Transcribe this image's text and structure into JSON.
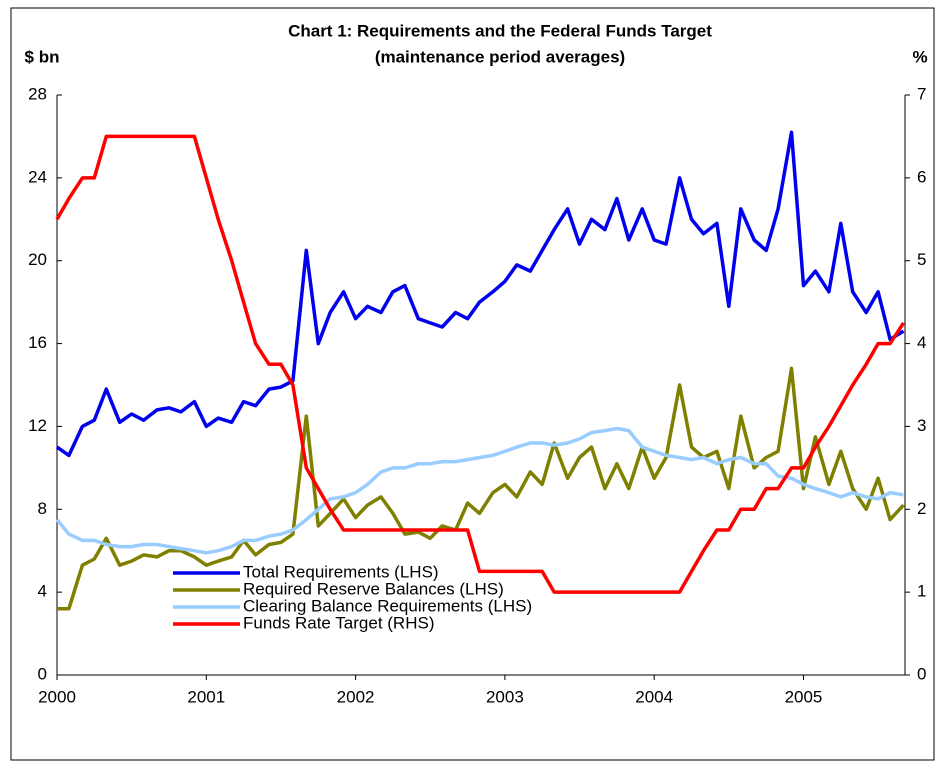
{
  "chart_data": {
    "type": "line",
    "title": "Chart 1:  Requirements and the Federal Funds Target",
    "subtitle": "(maintenance period averages)",
    "y_label": "$ bn",
    "y2_label": "%",
    "x": [
      2000,
      2000.08,
      2000.17,
      2000.25,
      2000.33,
      2000.42,
      2000.5,
      2000.58,
      2000.67,
      2000.75,
      2000.83,
      2000.92,
      2001,
      2001.08,
      2001.17,
      2001.25,
      2001.33,
      2001.42,
      2001.5,
      2001.58,
      2001.67,
      2001.75,
      2001.83,
      2001.92,
      2002,
      2002.08,
      2002.17,
      2002.25,
      2002.33,
      2002.42,
      2002.5,
      2002.58,
      2002.67,
      2002.75,
      2002.83,
      2002.92,
      2003,
      2003.08,
      2003.17,
      2003.25,
      2003.33,
      2003.42,
      2003.5,
      2003.58,
      2003.67,
      2003.75,
      2003.83,
      2003.92,
      2004,
      2004.08,
      2004.17,
      2004.25,
      2004.33,
      2004.42,
      2004.5,
      2004.58,
      2004.67,
      2004.75,
      2004.83,
      2004.92,
      2005,
      2005.08,
      2005.17,
      2005.25,
      2005.33,
      2005.42,
      2005.5,
      2005.58,
      2005.67
    ],
    "xlim": [
      2000,
      2005.68
    ],
    "xticks": [
      2000,
      2001,
      2002,
      2003,
      2004,
      2005
    ],
    "ylim": [
      0,
      28
    ],
    "yticks": [
      0,
      4,
      8,
      12,
      16,
      20,
      24,
      28
    ],
    "y2lim": [
      0,
      7
    ],
    "y2ticks": [
      0,
      1,
      2,
      3,
      4,
      5,
      6,
      7
    ],
    "grid": false,
    "series": [
      {
        "name": "Total Requirements (LHS)",
        "color": "#0000ee",
        "values": [
          11.0,
          10.6,
          12.0,
          12.3,
          13.8,
          12.2,
          12.6,
          12.3,
          12.8,
          12.9,
          12.7,
          13.2,
          12.0,
          12.4,
          12.2,
          13.2,
          13.0,
          13.8,
          13.9,
          14.2,
          20.5,
          16.0,
          17.5,
          18.5,
          17.2,
          17.8,
          17.5,
          18.5,
          18.8,
          17.2,
          17.0,
          16.8,
          17.5,
          17.2,
          18.0,
          18.5,
          19.0,
          19.8,
          19.5,
          20.5,
          21.5,
          22.5,
          20.8,
          22.0,
          21.5,
          23.0,
          21.0,
          22.5,
          21.0,
          20.8,
          24.0,
          22.0,
          21.3,
          21.8,
          17.8,
          22.5,
          21.0,
          20.5,
          22.5,
          26.2,
          18.8,
          19.5,
          18.5,
          21.8,
          18.5,
          17.5,
          18.5,
          16.2,
          16.6
        ]
      },
      {
        "name": "Required Reserve Balances (LHS)",
        "color": "#808000",
        "values": [
          3.2,
          3.2,
          5.3,
          5.6,
          6.6,
          5.3,
          5.5,
          5.8,
          5.7,
          6.0,
          6.0,
          5.7,
          5.3,
          5.5,
          5.7,
          6.5,
          5.8,
          6.3,
          6.4,
          6.8,
          12.5,
          7.2,
          7.8,
          8.5,
          7.6,
          8.2,
          8.6,
          7.8,
          6.8,
          6.9,
          6.6,
          7.2,
          7.0,
          8.3,
          7.8,
          8.8,
          9.2,
          8.6,
          9.8,
          9.2,
          11.2,
          9.5,
          10.5,
          11.0,
          9.0,
          10.2,
          9.0,
          11.0,
          9.5,
          10.5,
          14.0,
          11.0,
          10.5,
          10.8,
          9.0,
          12.5,
          10.0,
          10.5,
          10.8,
          14.8,
          9.0,
          11.5,
          9.2,
          10.8,
          9.0,
          8.0,
          9.5,
          7.5,
          8.2
        ]
      },
      {
        "name": "Clearing Balance Requirements (LHS)",
        "color": "#99ccff",
        "values": [
          7.5,
          6.8,
          6.5,
          6.5,
          6.3,
          6.2,
          6.2,
          6.3,
          6.3,
          6.2,
          6.1,
          6.0,
          5.9,
          6.0,
          6.2,
          6.5,
          6.5,
          6.7,
          6.8,
          7.0,
          7.5,
          8.0,
          8.5,
          8.6,
          8.8,
          9.2,
          9.8,
          10.0,
          10.0,
          10.2,
          10.2,
          10.3,
          10.3,
          10.4,
          10.5,
          10.6,
          10.8,
          11.0,
          11.2,
          11.2,
          11.1,
          11.2,
          11.4,
          11.7,
          11.8,
          11.9,
          11.8,
          11.0,
          10.8,
          10.6,
          10.5,
          10.4,
          10.5,
          10.2,
          10.4,
          10.5,
          10.2,
          10.2,
          9.6,
          9.5,
          9.2,
          9.0,
          8.8,
          8.6,
          8.8,
          8.6,
          8.5,
          8.8,
          8.7
        ]
      },
      {
        "name": "Funds Rate Target (RHS)",
        "color": "#ff0000",
        "axis": "y2",
        "values": [
          5.5,
          5.75,
          6.0,
          6.0,
          6.5,
          6.5,
          6.5,
          6.5,
          6.5,
          6.5,
          6.5,
          6.5,
          6.0,
          5.5,
          5.0,
          4.5,
          4.0,
          3.75,
          3.75,
          3.5,
          2.5,
          2.25,
          2.0,
          1.75,
          1.75,
          1.75,
          1.75,
          1.75,
          1.75,
          1.75,
          1.75,
          1.75,
          1.75,
          1.75,
          1.25,
          1.25,
          1.25,
          1.25,
          1.25,
          1.25,
          1.0,
          1.0,
          1.0,
          1.0,
          1.0,
          1.0,
          1.0,
          1.0,
          1.0,
          1.0,
          1.0,
          1.25,
          1.5,
          1.75,
          1.75,
          2.0,
          2.0,
          2.25,
          2.25,
          2.5,
          2.5,
          2.75,
          3.0,
          3.25,
          3.5,
          3.75,
          4.0,
          4.0,
          4.25
        ]
      }
    ]
  }
}
